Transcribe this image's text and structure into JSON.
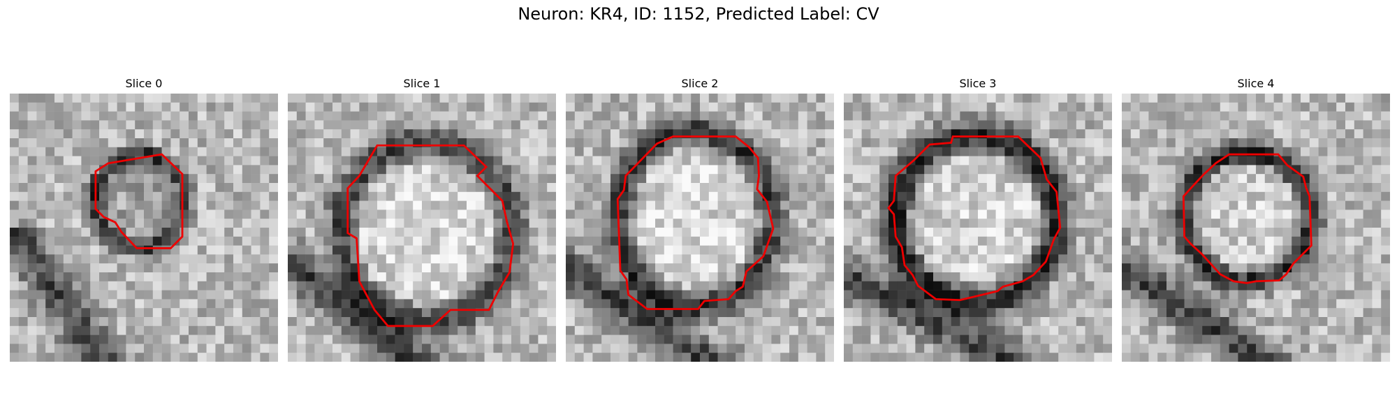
{
  "figure": {
    "title": "Neuron: KR4, ID: 1152, Predicted Label: CV"
  },
  "colors": {
    "contour": "#ee0000",
    "background": "#ffffff"
  },
  "panels": [
    {
      "title": "Slice 0",
      "outline_icon": "red-contour-outline"
    },
    {
      "title": "Slice 1",
      "outline_icon": "red-contour-outline"
    },
    {
      "title": "Slice 2",
      "outline_icon": "red-contour-outline"
    },
    {
      "title": "Slice 3",
      "outline_icon": "red-contour-outline"
    },
    {
      "title": "Slice 4",
      "outline_icon": "red-contour-outline"
    }
  ]
}
